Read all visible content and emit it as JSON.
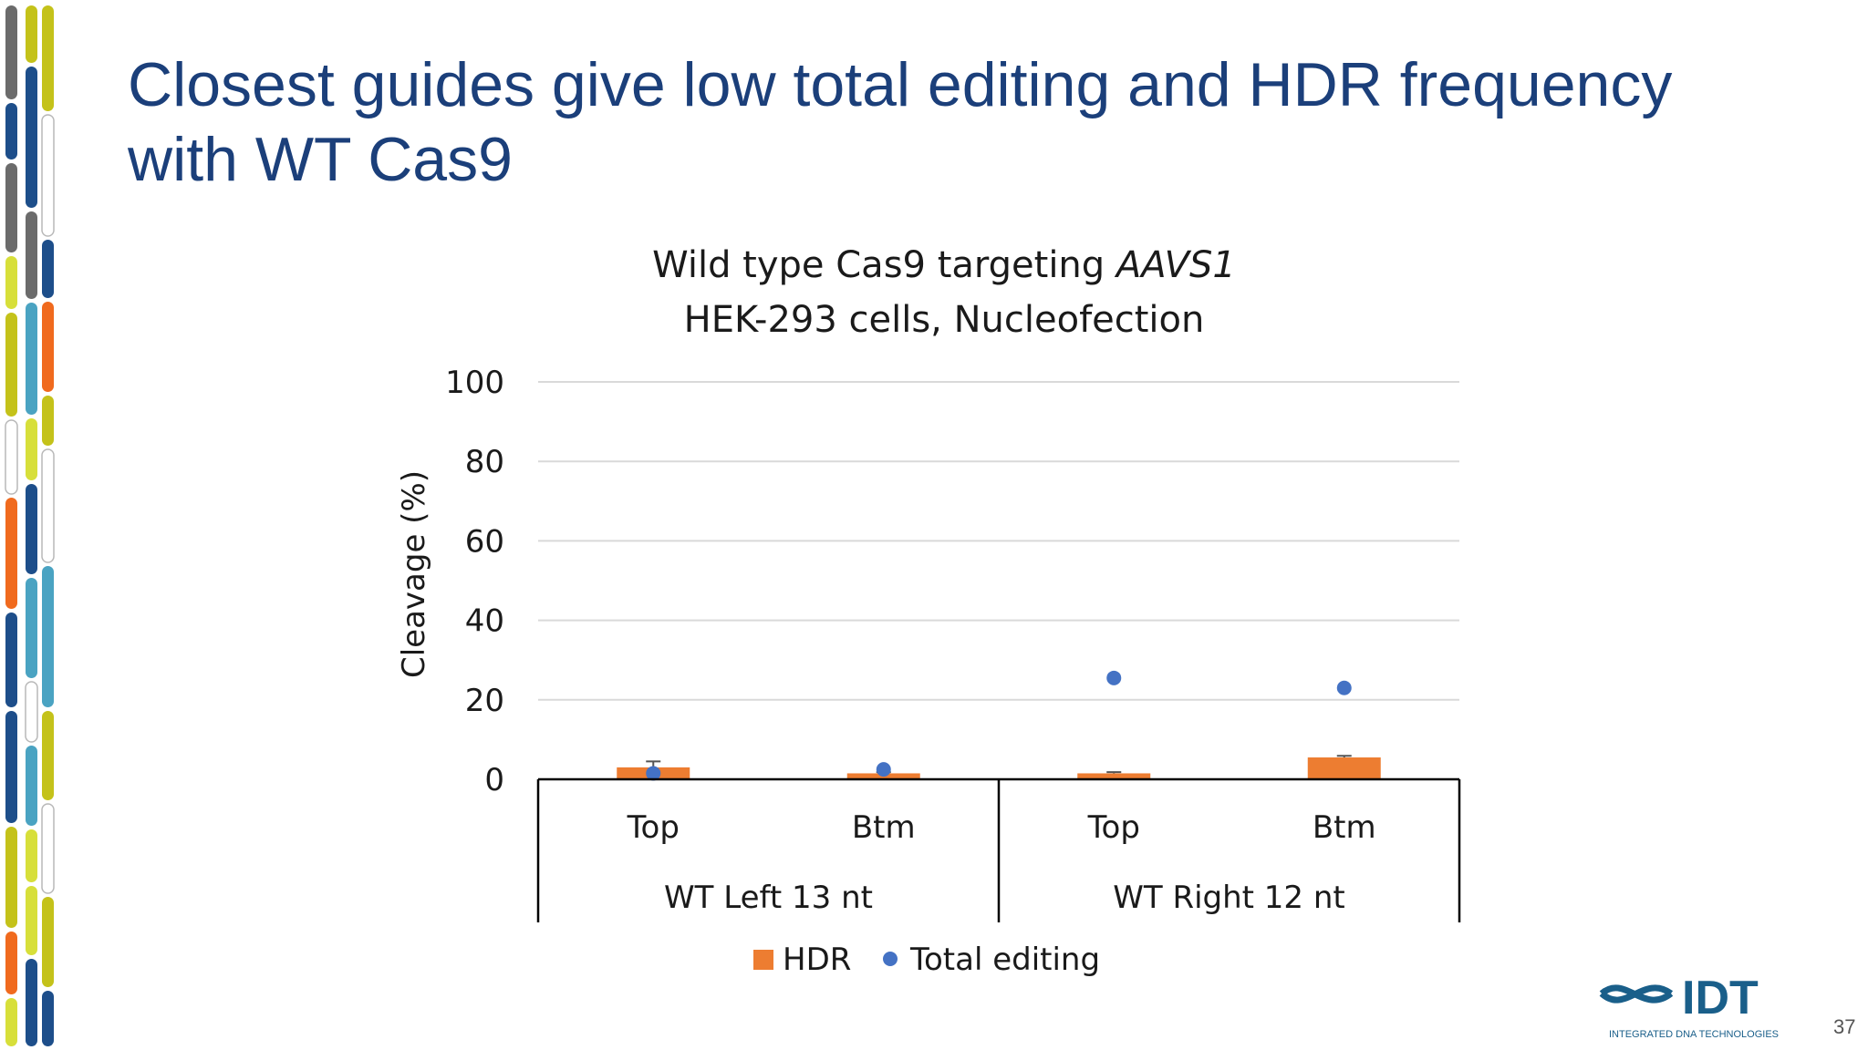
{
  "slide": {
    "title_line1": "Closest guides give low total editing and HDR frequency",
    "title_line2": "with WT Cas9",
    "page_number": "37"
  },
  "logo": {
    "wordmark": "IDT",
    "tagline": "INTEGRATED DNA TECHNOLOGIES"
  },
  "colors": {
    "title": "#1b3f7a",
    "hdr_bar": "#ed7d31",
    "total_editing_dot": "#4472c4",
    "grid": "#d9d9d9",
    "logo": "#1a5f8a"
  },
  "chart_data": {
    "type": "bar",
    "title_line1_prefix": "Wild type Cas9 targeting ",
    "title_line1_gene": "AAVS1",
    "title_line2": "HEK-293 cells, Nucleofection",
    "ylabel": "Cleavage (%)",
    "xlabel": "",
    "ylim": [
      0,
      100
    ],
    "yticks": [
      "0",
      "20",
      "40",
      "60",
      "80",
      "100"
    ],
    "ytick_values": [
      0,
      20,
      40,
      60,
      80,
      100
    ],
    "grid": true,
    "legend_position": "bottom",
    "groups": [
      {
        "label": "WT Left 13 nt",
        "categories": [
          "Top",
          "Btm"
        ]
      },
      {
        "label": "WT Right 12 nt",
        "categories": [
          "Top",
          "Btm"
        ]
      }
    ],
    "categories": [
      "Top",
      "Btm",
      "Top",
      "Btm"
    ],
    "series": [
      {
        "name": "HDR",
        "kind": "bar",
        "values": [
          3.0,
          1.5,
          1.5,
          5.5
        ],
        "error": [
          1.5,
          0.3,
          0.3,
          0.4
        ]
      },
      {
        "name": "Total editing",
        "kind": "scatter",
        "values": [
          1.5,
          2.5,
          25.5,
          23.0
        ]
      }
    ]
  }
}
